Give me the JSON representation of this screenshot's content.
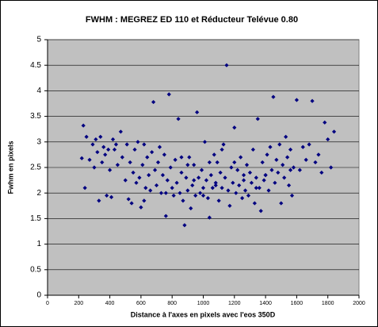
{
  "chart_data": {
    "type": "scatter",
    "title": "FWHM : MEGREZ ED 110 et Réducteur Telévue 0.80",
    "x_label": "Distance à l'axes en pixels avec l'eos 350D",
    "y_label": "Fwhm en pixels",
    "color": "#000080",
    "background": "#c0c0c0",
    "grid": true,
    "xlim": [
      0,
      2000
    ],
    "xticks": [
      0,
      200,
      400,
      600,
      800,
      1000,
      1200,
      1400,
      1600,
      1800,
      2000
    ],
    "ylim": [
      0,
      5
    ],
    "yticks": [
      0,
      0.5,
      1,
      1.5,
      2,
      2.5,
      3,
      3.5,
      4,
      4.5,
      5
    ],
    "x": [
      220,
      230,
      250,
      270,
      290,
      300,
      310,
      320,
      330,
      340,
      350,
      360,
      370,
      380,
      390,
      400,
      410,
      420,
      430,
      450,
      470,
      480,
      500,
      510,
      520,
      530,
      540,
      550,
      560,
      570,
      580,
      590,
      600,
      610,
      620,
      630,
      640,
      650,
      660,
      670,
      680,
      690,
      700,
      710,
      720,
      730,
      740,
      750,
      760,
      770,
      780,
      790,
      800,
      810,
      820,
      830,
      840,
      850,
      860,
      870,
      880,
      890,
      900,
      910,
      920,
      930,
      940,
      950,
      960,
      970,
      980,
      990,
      1000,
      1010,
      1020,
      1030,
      1040,
      1050,
      1060,
      1070,
      1080,
      1090,
      1100,
      1110,
      1120,
      1130,
      1140,
      1150,
      1160,
      1170,
      1180,
      1190,
      1200,
      1210,
      1220,
      1230,
      1240,
      1250,
      1260,
      1270,
      1280,
      1290,
      1300,
      1310,
      1320,
      1330,
      1340,
      1350,
      1360,
      1370,
      1380,
      1390,
      1400,
      1410,
      1420,
      1430,
      1440,
      1450,
      1460,
      1470,
      1480,
      1490,
      1500,
      1510,
      1520,
      1530,
      1540,
      1550,
      1560,
      1570,
      1580,
      1600,
      1620,
      1640,
      1660,
      1680,
      1700,
      1720,
      1740,
      1760,
      1780,
      1800,
      1820,
      1840,
      240,
      440,
      620,
      860,
      1040,
      1260,
      760,
      900,
      1000,
      1120,
      1340,
      1400,
      1560,
      940,
      1080,
      1200
    ],
    "values": [
      2.68,
      3.32,
      3.1,
      2.65,
      2.95,
      2.5,
      3.05,
      2.8,
      1.85,
      3.1,
      2.6,
      2.9,
      2.75,
      1.95,
      2.85,
      2.45,
      1.92,
      3.05,
      2.85,
      2.55,
      3.2,
      2.7,
      2.25,
      2.95,
      1.88,
      2.6,
      1.8,
      2.4,
      2.85,
      2.2,
      3.0,
      2.3,
      1.72,
      2.55,
      2.95,
      2.1,
      2.7,
      2.35,
      2.05,
      2.8,
      3.78,
      2.45,
      2.15,
      2.6,
      2.9,
      2.0,
      2.35,
      2.75,
      1.55,
      2.25,
      3.93,
      2.5,
      2.1,
      1.95,
      2.65,
      2.2,
      3.45,
      2.0,
      2.4,
      1.85,
      1.37,
      2.3,
      2.05,
      2.7,
      1.7,
      2.15,
      2.55,
      1.95,
      3.58,
      2.3,
      2.0,
      2.45,
      2.1,
      3.0,
      2.25,
      1.9,
      1.52,
      2.35,
      2.1,
      2.75,
      2.2,
      2.6,
      1.85,
      2.4,
      2.1,
      2.95,
      2.3,
      4.5,
      2.05,
      1.75,
      2.5,
      2.2,
      3.28,
      2.0,
      2.45,
      2.15,
      2.7,
      1.9,
      2.35,
      2.05,
      2.55,
      1.95,
      2.4,
      2.2,
      2.85,
      1.8,
      2.3,
      3.45,
      2.1,
      1.65,
      2.6,
      2.25,
      2.35,
      2.75,
      2.05,
      2.9,
      2.45,
      3.88,
      2.2,
      2.65,
      2.4,
      2.95,
      1.8,
      2.55,
      2.3,
      3.1,
      2.7,
      2.15,
      2.85,
      1.95,
      2.5,
      3.82,
      2.45,
      2.9,
      2.65,
      2.95,
      3.8,
      2.6,
      2.75,
      2.4,
      3.38,
      3.05,
      2.5,
      3.2,
      2.1,
      2.95,
      1.85,
      2.7,
      2.6,
      2.25,
      2.0,
      2.55,
      1.95,
      2.85,
      2.1,
      2.35,
      2.45,
      2.25,
      2.15,
      2.6
    ]
  }
}
